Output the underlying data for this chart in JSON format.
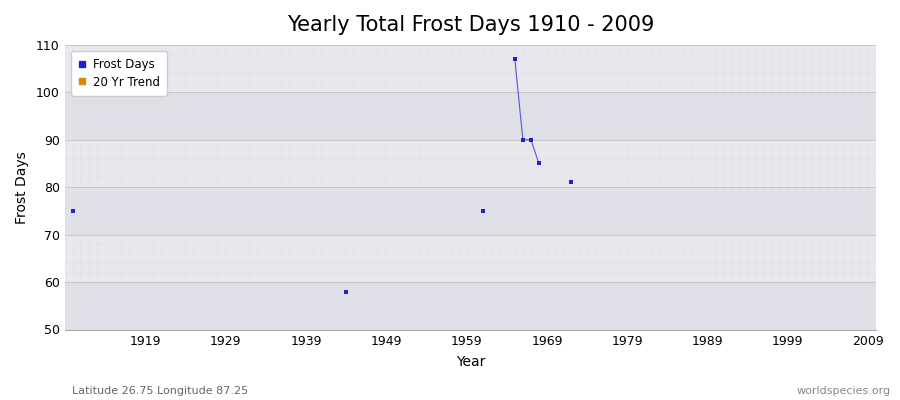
{
  "title": "Yearly Total Frost Days 1910 - 2009",
  "xlabel": "Year",
  "ylabel": "Frost Days",
  "xlim": [
    1909,
    2010
  ],
  "ylim": [
    50,
    110
  ],
  "xticks": [
    1919,
    1929,
    1939,
    1949,
    1959,
    1969,
    1979,
    1989,
    1999,
    2009
  ],
  "yticks": [
    50,
    60,
    70,
    80,
    90,
    100,
    110
  ],
  "fig_bg_color": "#ffffff",
  "plot_bg_color": "#e8e8ee",
  "band_colors": [
    "#e0e0e8",
    "#e8e8ee"
  ],
  "frost_days_years": [
    1910,
    1944,
    1961,
    1965,
    1966,
    1967,
    1968,
    1972
  ],
  "frost_days_values": [
    75,
    58,
    75,
    107,
    90,
    90,
    85,
    81
  ],
  "connected_segment_years": [
    1965,
    1966,
    1967,
    1968
  ],
  "connected_segment_values": [
    107,
    90,
    90,
    85
  ],
  "line_color": "#5555dd",
  "dot_color": "#2222cc",
  "dot_size": 2.5,
  "legend_frost_label": "Frost Days",
  "legend_trend_label": "20 Yr Trend",
  "legend_frost_color": "#2222cc",
  "legend_trend_color": "#dd8800",
  "footer_left": "Latitude 26.75 Longitude 87.25",
  "footer_right": "worldspecies.org",
  "title_fontsize": 15,
  "axis_label_fontsize": 10,
  "tick_fontsize": 9,
  "footer_fontsize": 8
}
